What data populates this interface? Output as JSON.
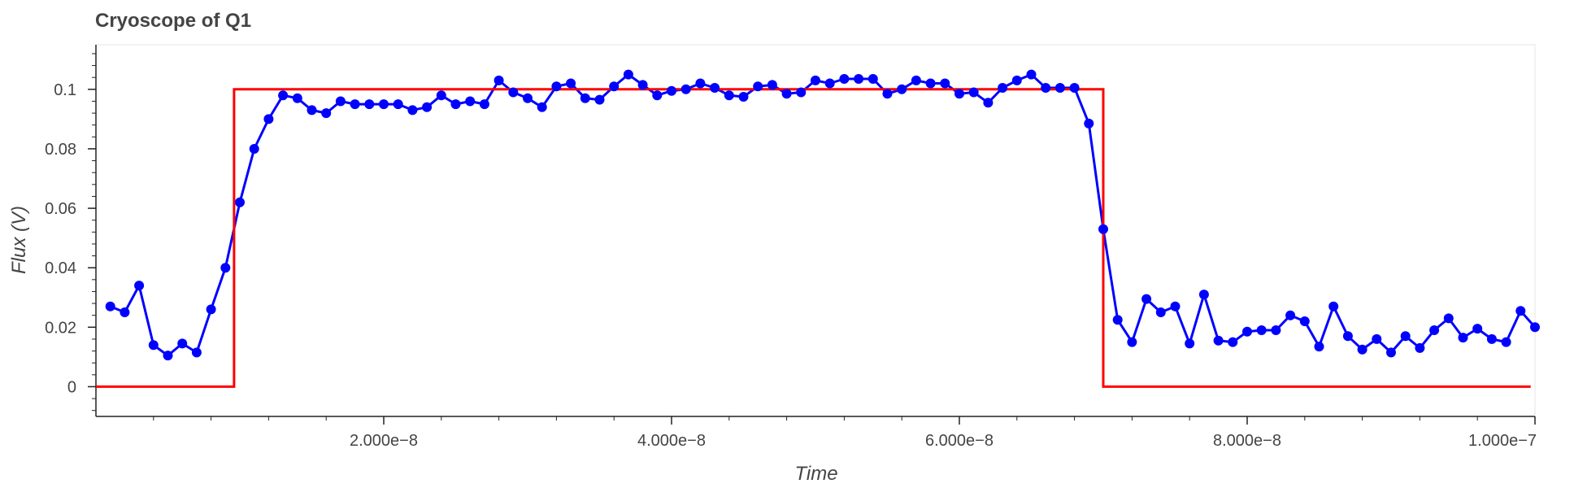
{
  "chart_data": {
    "type": "line",
    "title": "Cryoscope of Q1",
    "xlabel": "Time",
    "ylabel": "Flux (V)",
    "xlim": [
      0,
      1e-07
    ],
    "ylim": [
      -0.01,
      0.115
    ],
    "xticks": [
      {
        "value": 2e-08,
        "label": "2.000e−8"
      },
      {
        "value": 4e-08,
        "label": "4.000e−8"
      },
      {
        "value": 6e-08,
        "label": "6.000e−8"
      },
      {
        "value": 8e-08,
        "label": "8.000e−8"
      },
      {
        "value": 1e-07,
        "label": "1.000e−7"
      }
    ],
    "yticks": [
      {
        "value": 0,
        "label": "0"
      },
      {
        "value": 0.02,
        "label": "0.02"
      },
      {
        "value": 0.04,
        "label": "0.04"
      },
      {
        "value": 0.06,
        "label": "0.06"
      },
      {
        "value": 0.08,
        "label": "0.08"
      },
      {
        "value": 0.1,
        "label": "0.1"
      }
    ],
    "grid": false,
    "series": [
      {
        "color": "#0000ff",
        "style": "line-with-markers",
        "x": [
          1e-09,
          2e-09,
          3e-09,
          4e-09,
          5e-09,
          6e-09,
          7e-09,
          8e-09,
          9e-09,
          1e-08,
          1.1e-08,
          1.2e-08,
          1.3e-08,
          1.4e-08,
          1.5e-08,
          1.6e-08,
          1.7e-08,
          1.8e-08,
          1.9e-08,
          2e-08,
          2.1e-08,
          2.2e-08,
          2.3e-08,
          2.4e-08,
          2.5e-08,
          2.6e-08,
          2.7e-08,
          2.8e-08,
          2.9e-08,
          3e-08,
          3.1e-08,
          3.2e-08,
          3.3e-08,
          3.4e-08,
          3.5e-08,
          3.6e-08,
          3.7e-08,
          3.8e-08,
          3.9e-08,
          4e-08,
          4.1e-08,
          4.2e-08,
          4.3e-08,
          4.4e-08,
          4.5e-08,
          4.6e-08,
          4.7e-08,
          4.8e-08,
          4.9e-08,
          5e-08,
          5.1e-08,
          5.2e-08,
          5.3e-08,
          5.4e-08,
          5.5e-08,
          5.6e-08,
          5.7e-08,
          5.8e-08,
          5.9e-08,
          6e-08,
          6.1e-08,
          6.2e-08,
          6.3e-08,
          6.4e-08,
          6.5e-08,
          6.6e-08,
          6.7e-08,
          6.8e-08,
          6.9e-08,
          7e-08,
          7.1e-08,
          7.2e-08,
          7.3e-08,
          7.4e-08,
          7.5e-08,
          7.6e-08,
          7.7e-08,
          7.8e-08,
          7.9e-08,
          8e-08,
          8.1e-08,
          8.2e-08,
          8.3e-08,
          8.4e-08,
          8.5e-08,
          8.6e-08,
          8.7e-08,
          8.8e-08,
          8.9e-08,
          9e-08,
          9.1e-08,
          9.2e-08,
          9.3e-08,
          9.4e-08,
          9.5e-08,
          9.6e-08,
          9.7e-08,
          9.8e-08,
          9.9e-08,
          1e-07
        ],
        "y": [
          0.027,
          0.025,
          0.034,
          0.014,
          0.0105,
          0.0145,
          0.0115,
          0.026,
          0.04,
          0.062,
          0.08,
          0.09,
          0.098,
          0.097,
          0.093,
          0.092,
          0.096,
          0.095,
          0.095,
          0.095,
          0.095,
          0.093,
          0.094,
          0.098,
          0.095,
          0.096,
          0.095,
          0.103,
          0.099,
          0.097,
          0.094,
          0.101,
          0.102,
          0.097,
          0.0965,
          0.101,
          0.105,
          0.1015,
          0.098,
          0.0995,
          0.1,
          0.102,
          0.1005,
          0.098,
          0.0975,
          0.101,
          0.1015,
          0.0985,
          0.099,
          0.103,
          0.102,
          0.1035,
          0.1035,
          0.1035,
          0.0985,
          0.1,
          0.103,
          0.102,
          0.102,
          0.0985,
          0.099,
          0.0955,
          0.1005,
          0.103,
          0.105,
          0.1005,
          0.1005,
          0.1005,
          0.0885,
          0.053,
          0.0225,
          0.015,
          0.0295,
          0.025,
          0.027,
          0.0145,
          0.031,
          0.0155,
          0.015,
          0.0185,
          0.019,
          0.019,
          0.024,
          0.022,
          0.0135,
          0.027,
          0.017,
          0.0125,
          0.016,
          0.0115,
          0.017,
          0.013,
          0.019,
          0.023,
          0.0165,
          0.0195,
          0.016,
          0.015,
          0.0255,
          0.02
        ]
      },
      {
        "color": "#ff0000",
        "style": "line",
        "x": [
          0,
          9.6e-09,
          9.6e-09,
          7e-08,
          7e-08,
          9.97e-08
        ],
        "y": [
          0,
          0,
          0.1,
          0.1,
          0,
          0
        ]
      }
    ]
  }
}
